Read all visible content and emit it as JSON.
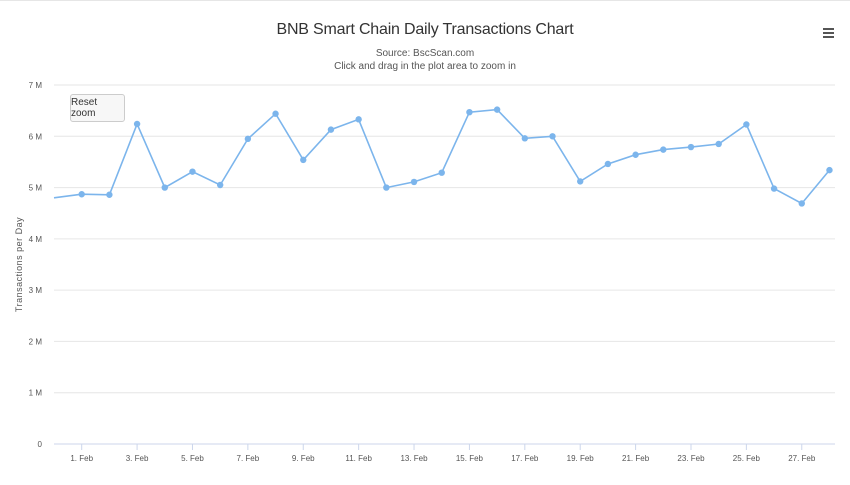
{
  "header": {
    "title": "BNB Smart Chain Daily Transactions Chart",
    "source": "Source: BscScan.com",
    "hint": "Click and drag in the plot area to zoom in",
    "menu_icon": "hamburger-menu-icon",
    "reset_zoom_label": "Reset zoom"
  },
  "chart_data": {
    "type": "line",
    "title": "BNB Smart Chain Daily Transactions Chart",
    "subtitle": "Source: BscScan.com",
    "xlabel": "",
    "ylabel": "Transactions per Day",
    "ylim": [
      0,
      7000000
    ],
    "yticks": [
      0,
      1000000,
      2000000,
      3000000,
      4000000,
      5000000,
      6000000,
      7000000
    ],
    "ytick_labels": [
      "0",
      "1 M",
      "2 M",
      "3 M",
      "4 M",
      "5 M",
      "6 M",
      "7 M"
    ],
    "xtick_labels": [
      "1. Feb",
      "3. Feb",
      "5. Feb",
      "7. Feb",
      "9. Feb",
      "11. Feb",
      "13. Feb",
      "15. Feb",
      "17. Feb",
      "19. Feb",
      "21. Feb",
      "23. Feb",
      "25. Feb",
      "27. Feb"
    ],
    "xtick_days": [
      1,
      3,
      5,
      7,
      9,
      11,
      13,
      15,
      17,
      19,
      21,
      23,
      25,
      27
    ],
    "grid": true,
    "line_color": "#7cb5ec",
    "x": [
      "2022-01-31",
      "2022-02-01",
      "2022-02-02",
      "2022-02-03",
      "2022-02-04",
      "2022-02-05",
      "2022-02-06",
      "2022-02-07",
      "2022-02-08",
      "2022-02-09",
      "2022-02-10",
      "2022-02-11",
      "2022-02-12",
      "2022-02-13",
      "2022-02-14",
      "2022-02-15",
      "2022-02-16",
      "2022-02-17",
      "2022-02-18",
      "2022-02-19",
      "2022-02-20",
      "2022-02-21",
      "2022-02-22",
      "2022-02-23",
      "2022-02-24",
      "2022-02-25",
      "2022-02-26",
      "2022-02-27",
      "2022-02-28"
    ],
    "x_days": [
      0,
      1,
      2,
      3,
      4,
      5,
      6,
      7,
      8,
      9,
      10,
      11,
      12,
      13,
      14,
      15,
      16,
      17,
      18,
      19,
      20,
      21,
      22,
      23,
      24,
      25,
      26,
      27,
      28
    ],
    "values": [
      4800000,
      4870000,
      4860000,
      6240000,
      5000000,
      5310000,
      5050000,
      5950000,
      6440000,
      5540000,
      6130000,
      6330000,
      5000000,
      5110000,
      5290000,
      6470000,
      6520000,
      5960000,
      6000000,
      5120000,
      5460000,
      5640000,
      5740000,
      5790000,
      5850000,
      6230000,
      4980000,
      4690000,
      5340000
    ]
  }
}
